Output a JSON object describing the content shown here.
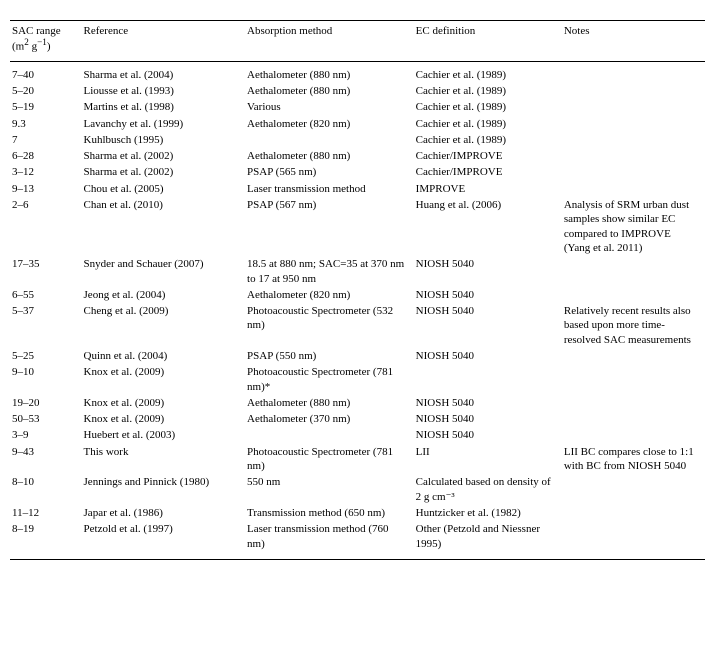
{
  "table": {
    "headers": {
      "sac": "SAC range\n(m² g⁻¹)",
      "reference": "Reference",
      "absorption": "Absorption method",
      "ec": "EC definition",
      "notes": "Notes"
    },
    "rows": [
      {
        "sac": "7–40",
        "ref": "Sharma et al. (2004)",
        "abs": "Aethalometer (880 nm)",
        "ec": "Cachier et al. (1989)",
        "notes": ""
      },
      {
        "sac": "5–20",
        "ref": "Liousse et al. (1993)",
        "abs": "Aethalometer (880 nm)",
        "ec": "Cachier et al. (1989)",
        "notes": ""
      },
      {
        "sac": "5–19",
        "ref": "Martins et al. (1998)",
        "abs": "Various",
        "ec": "Cachier et al. (1989)",
        "notes": ""
      },
      {
        "sac": "9.3",
        "ref": "Lavanchy et al. (1999)",
        "abs": "Aethalometer (820 nm)",
        "ec": "Cachier et al. (1989)",
        "notes": ""
      },
      {
        "sac": "7",
        "ref": "Kuhlbusch (1995)",
        "abs": "",
        "ec": "Cachier et al. (1989)",
        "notes": ""
      },
      {
        "sac": "6–28",
        "ref": "Sharma et al. (2002)",
        "abs": "Aethalometer (880 nm)",
        "ec": "Cachier/IMPROVE",
        "notes": ""
      },
      {
        "sac": "3–12",
        "ref": "Sharma et al. (2002)",
        "abs": "PSAP (565 nm)",
        "ec": "Cachier/IMPROVE",
        "notes": ""
      },
      {
        "sac": "9–13",
        "ref": "Chou et al. (2005)",
        "abs": "Laser transmission method",
        "ec": "IMPROVE",
        "notes": ""
      },
      {
        "sac": "2–6",
        "ref": "Chan et al. (2010)",
        "abs": "PSAP (567 nm)",
        "ec": "Huang et al. (2006)",
        "notes": "Analysis of SRM urban dust samples show similar EC compared to IMPROVE (Yang et al. 2011)"
      },
      {
        "sac": "17–35",
        "ref": "Snyder and Schauer (2007)",
        "abs": "18.5 at 880 nm; SAC=35 at 370 nm to 17 at 950 nm",
        "ec": "NIOSH 5040",
        "notes": ""
      },
      {
        "sac": "6–55",
        "ref": "Jeong et al. (2004)",
        "abs": "Aethalometer (820 nm)",
        "ec": "NIOSH 5040",
        "notes": ""
      },
      {
        "sac": "5–37",
        "ref": "Cheng et al. (2009)",
        "abs": "Photoacoustic Spectrometer (532 nm)",
        "ec": "NIOSH 5040",
        "notes": "Relatively recent results also based upon more time-resolved SAC measurements"
      },
      {
        "sac": "5–25",
        "ref": "Quinn et al. (2004)",
        "abs": "PSAP (550 nm)",
        "ec": "NIOSH 5040",
        "notes": ""
      },
      {
        "sac": "9–10",
        "ref": "Knox et al. (2009)",
        "abs": "Photoacoustic Spectrometer (781 nm)*",
        "ec": "",
        "notes": ""
      },
      {
        "sac": "19–20",
        "ref": "Knox et al. (2009)",
        "abs": "Aethalometer (880 nm)",
        "ec": "NIOSH 5040",
        "notes": ""
      },
      {
        "sac": "50–53",
        "ref": "Knox et al. (2009)",
        "abs": "Aethalometer (370 nm)",
        "ec": "NIOSH 5040",
        "notes": ""
      },
      {
        "sac": "3–9",
        "ref": "Huebert et al. (2003)",
        "abs": "",
        "ec": "NIOSH 5040",
        "notes": ""
      },
      {
        "sac": "9–43",
        "ref": "This work",
        "abs": "Photoacoustic Spectrometer (781 nm)",
        "ec": "LII",
        "notes": "LII BC compares close to 1:1 with BC from NIOSH 5040"
      },
      {
        "sac": "8–10",
        "ref": "Jennings and Pinnick (1980)",
        "abs": "550 nm",
        "ec": "Calculated based on density of 2 g cm⁻³",
        "notes": ""
      },
      {
        "sac": "11–12",
        "ref": "Japar et al. (1986)",
        "abs": "Transmission method (650 nm)",
        "ec": "Huntzicker et al. (1982)",
        "notes": ""
      },
      {
        "sac": "8–19",
        "ref": "Petzold et al. (1997)",
        "abs": "Laser transmission method (760 nm)",
        "ec": "Other (Petzold and Niessner 1995)",
        "notes": ""
      }
    ]
  }
}
